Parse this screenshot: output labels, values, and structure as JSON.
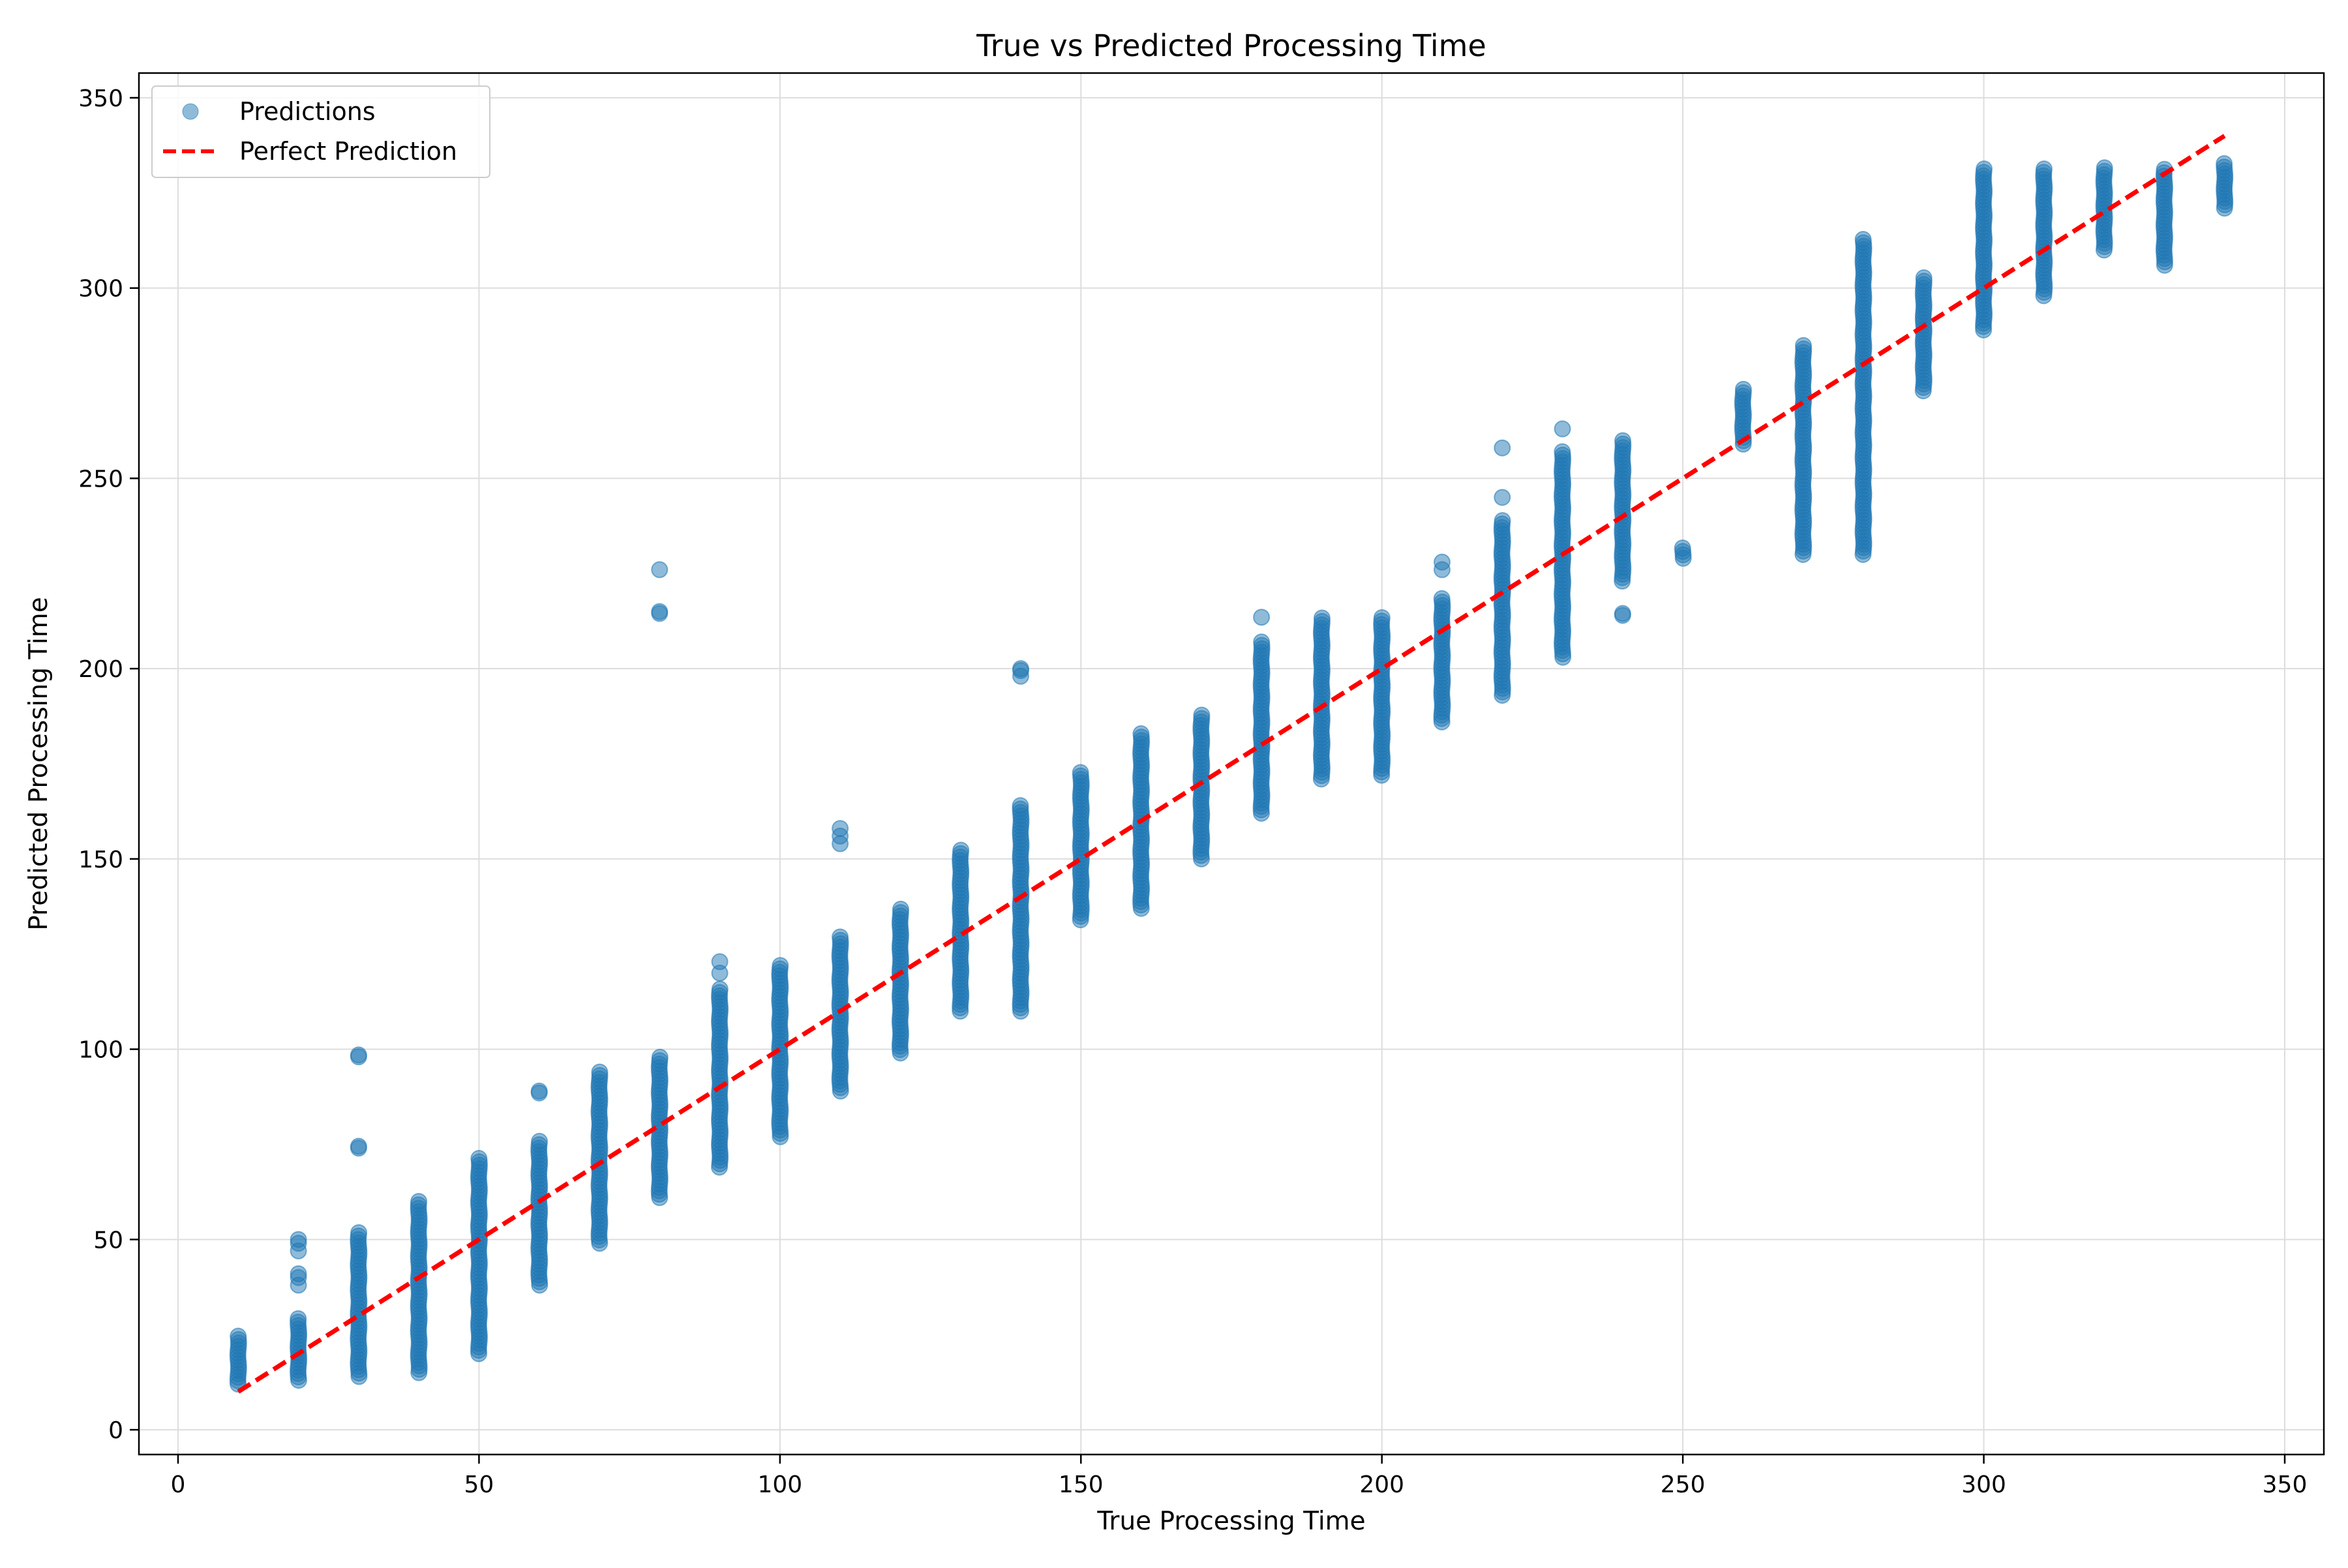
{
  "chart_data": {
    "type": "scatter",
    "title": "True vs Predicted Processing Time",
    "xlabel": "True Processing Time",
    "ylabel": "Predicted Processing Time",
    "xlim": [
      -6.5,
      356.5
    ],
    "ylim": [
      -6.5,
      356.5
    ],
    "xticks": [
      0,
      50,
      100,
      150,
      200,
      250,
      300,
      350
    ],
    "yticks": [
      0,
      50,
      100,
      150,
      200,
      250,
      300,
      350
    ],
    "xtick_labels": [
      "0",
      "50",
      "100",
      "150",
      "200",
      "250",
      "300",
      "350"
    ],
    "ytick_labels": [
      "0",
      "50",
      "100",
      "150",
      "200",
      "250",
      "300",
      "350"
    ],
    "grid": true,
    "legend_position": "top-left",
    "colors": {
      "scatter": "#1f77b4",
      "reference": "#ff0000",
      "grid": "#dddddd"
    },
    "series": [
      {
        "name": "Predictions",
        "kind": "scatter",
        "alpha": 0.5,
        "columns": [
          {
            "x": 10,
            "y_min": 12,
            "y_max": 25,
            "points": []
          },
          {
            "x": 20,
            "y_min": 13,
            "y_max": 30,
            "points": [
              38,
              40,
              41,
              47,
              49,
              50
            ]
          },
          {
            "x": 30,
            "y_min": 14,
            "y_max": 52,
            "points": [
              74,
              74.5,
              98,
              98.5
            ]
          },
          {
            "x": 40,
            "y_min": 15,
            "y_max": 60,
            "points": []
          },
          {
            "x": 50,
            "y_min": 20,
            "y_max": 72,
            "points": []
          },
          {
            "x": 60,
            "y_min": 38,
            "y_max": 76,
            "points": [
              88.5,
              89
            ]
          },
          {
            "x": 70,
            "y_min": 49,
            "y_max": 94,
            "points": []
          },
          {
            "x": 80,
            "y_min": 61,
            "y_max": 98,
            "points": [
              214.5,
              215,
              226
            ]
          },
          {
            "x": 90,
            "y_min": 69,
            "y_max": 116,
            "points": [
              120,
              123
            ]
          },
          {
            "x": 100,
            "y_min": 77,
            "y_max": 122,
            "points": []
          },
          {
            "x": 110,
            "y_min": 89,
            "y_max": 130,
            "points": [
              154,
              156,
              158
            ]
          },
          {
            "x": 120,
            "y_min": 99,
            "y_max": 137,
            "points": []
          },
          {
            "x": 130,
            "y_min": 110,
            "y_max": 153,
            "points": []
          },
          {
            "x": 140,
            "y_min": 110,
            "y_max": 164,
            "points": [
              198,
              199.5,
              200
            ]
          },
          {
            "x": 150,
            "y_min": 134,
            "y_max": 173,
            "points": []
          },
          {
            "x": 160,
            "y_min": 137,
            "y_max": 183,
            "points": []
          },
          {
            "x": 170,
            "y_min": 150,
            "y_max": 188,
            "points": []
          },
          {
            "x": 180,
            "y_min": 162,
            "y_max": 207,
            "points": [
              213.5
            ]
          },
          {
            "x": 190,
            "y_min": 171,
            "y_max": 214,
            "points": []
          },
          {
            "x": 200,
            "y_min": 172,
            "y_max": 214,
            "points": []
          },
          {
            "x": 210,
            "y_min": 186,
            "y_max": 219,
            "points": [
              226,
              228
            ]
          },
          {
            "x": 220,
            "y_min": 193,
            "y_max": 239,
            "points": [
              245,
              258
            ]
          },
          {
            "x": 230,
            "y_min": 203,
            "y_max": 257,
            "points": [
              263
            ]
          },
          {
            "x": 240,
            "y_min": 223,
            "y_max": 260,
            "points": [
              214,
              214.5
            ]
          },
          {
            "x": 250,
            "y_min": 229,
            "y_max": 232,
            "points": []
          },
          {
            "x": 260,
            "y_min": 259,
            "y_max": 274,
            "points": []
          },
          {
            "x": 270,
            "y_min": 230,
            "y_max": 285,
            "points": []
          },
          {
            "x": 280,
            "y_min": 230,
            "y_max": 313,
            "points": []
          },
          {
            "x": 290,
            "y_min": 273,
            "y_max": 303,
            "points": []
          },
          {
            "x": 300,
            "y_min": 289,
            "y_max": 332,
            "points": []
          },
          {
            "x": 310,
            "y_min": 298,
            "y_max": 332,
            "points": []
          },
          {
            "x": 320,
            "y_min": 310,
            "y_max": 332,
            "points": []
          },
          {
            "x": 330,
            "y_min": 306,
            "y_max": 332,
            "points": []
          },
          {
            "x": 340,
            "y_min": 321,
            "y_max": 333,
            "points": []
          }
        ]
      },
      {
        "name": "Perfect Prediction",
        "kind": "line",
        "style": "dashed",
        "x": [
          10,
          340
        ],
        "y": [
          10,
          340
        ]
      }
    ]
  }
}
